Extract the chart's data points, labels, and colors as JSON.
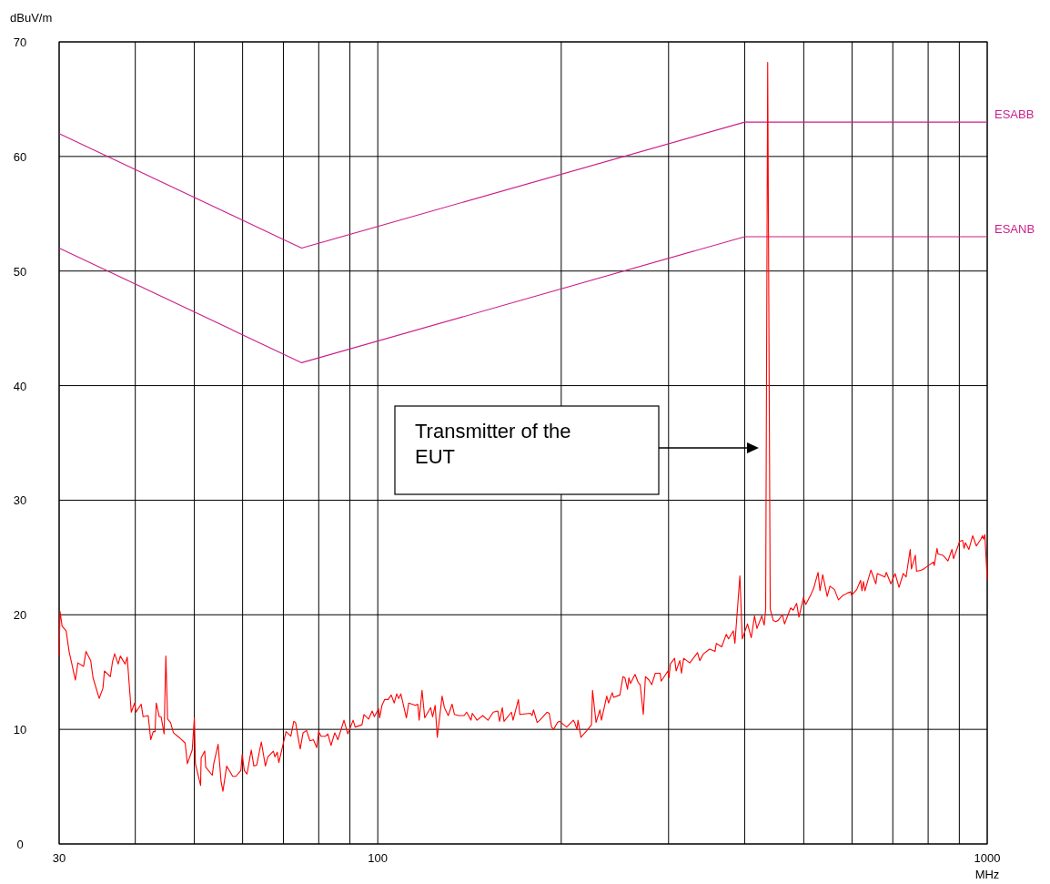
{
  "chart_data": {
    "type": "line",
    "xlabel": "MHz",
    "ylabel": "dBuV/m",
    "log": "x",
    "grid": true,
    "xlim": [
      30,
      1000
    ],
    "ylim": [
      0,
      70
    ],
    "xticks": [
      30,
      {
        "value": 40,
        "label": null
      },
      {
        "value": 50,
        "label": null
      },
      {
        "value": 60,
        "label": null
      },
      {
        "value": 70,
        "label": null
      },
      {
        "value": 80,
        "label": null
      },
      {
        "value": 90,
        "label": null
      },
      100,
      {
        "value": 200,
        "label": null
      },
      {
        "value": 300,
        "label": null
      },
      {
        "value": 400,
        "label": null
      },
      {
        "value": 500,
        "label": null
      },
      {
        "value": 600,
        "label": null
      },
      {
        "value": 700,
        "label": null
      },
      {
        "value": 800,
        "label": null
      },
      {
        "value": 900,
        "label": null
      },
      1000
    ],
    "yticks": [
      0,
      10,
      20,
      30,
      40,
      50,
      60,
      70
    ],
    "annotations": [
      "Transmitter of the EUT"
    ],
    "series": [
      {
        "name": "ESABB",
        "color": "#cc1f8a",
        "line_style": "solid",
        "x": [
          30,
          75,
          400,
          1000
        ],
        "values": [
          62,
          52,
          63,
          63
        ]
      },
      {
        "name": "ESANB",
        "color": "#cc1f8a",
        "line_style": "solid",
        "x": [
          30,
          75,
          400,
          1000
        ],
        "values": [
          52,
          42,
          53,
          53
        ]
      },
      {
        "color": "#ff0000",
        "line_style": "solid",
        "x": [
          30,
          30.1,
          30.34,
          30.8,
          31.15,
          31.9,
          32.2,
          32.9,
          33.2,
          33.8,
          34.1,
          34.9,
          35.4,
          35.6,
          36.4,
          36.7,
          37.0,
          37.5,
          37.8,
          38.5,
          38.8,
          39.4,
          39.9,
          40.1,
          40.9,
          41.2,
          42.0,
          42.4,
          42.8,
          43.1,
          43.3,
          43.8,
          44.1,
          44.6,
          44.9,
          45.2,
          45.7,
          46.2,
          47.2,
          48.3,
          48.7,
          49.6,
          50.0,
          50.2,
          51.2,
          51.3,
          52.0,
          52.2,
          53.5,
          53.8,
          54.7,
          55.3,
          55.7,
          56.5,
          57.8,
          58.5,
          59.6,
          59.9,
          60.4,
          61.0,
          62.0,
          62.6,
          63.3,
          64.4,
          65.4,
          66.0,
          67.4,
          67.8,
          68.4,
          68.8,
          70.7,
          72.0,
          72.8,
          73.3,
          74.0,
          74.6,
          75.4,
          76.4,
          77.4,
          78.4,
          79.4,
          80.0,
          80.7,
          82.1,
          82.8,
          83.8,
          85.0,
          86.0,
          88.0,
          89.3,
          91.1,
          91.8,
          94.2,
          94.9,
          96.6,
          97.9,
          98.7,
          100.3,
          100.7,
          101.6,
          102.6,
          104.0,
          105.2,
          106.4,
          107.4,
          108.2,
          109.1,
          111.4,
          112.4,
          115.3,
          116.3,
          116.9,
          118.2,
          119.4,
          122.1,
          123.0,
          124.2,
          125.2,
          127.5,
          128.6,
          130.5,
          132.4,
          133.6,
          135.8,
          138.6,
          139.9,
          142.2,
          142.9,
          145.5,
          148.6,
          151.7,
          154.7,
          157.4,
          158.4,
          160.1,
          161.1,
          165.7,
          166.7,
          170.1,
          171.0,
          178.0,
          179.1,
          180.1,
          182.6,
          184.4,
          189.5,
          191.1,
          192.8,
          194.3,
          197.2,
          198.8,
          204.1,
          209.3,
          210.4,
          212.2,
          213.1,
          215.4,
          220.4,
          224.2,
          225.1,
          228.1,
          231.5,
          232.8,
          237.5,
          239.1,
          242.5,
          243.7,
          249.6,
          252.5,
          254.4,
          256.9,
          258.2,
          259.8,
          264.3,
          267.4,
          269.5,
          272.7,
          274.9,
          278.7,
          281.5,
          285.3,
          290.6,
          291.7,
          299.3,
          300.5,
          302,
          306.9,
          308.7,
          313.0,
          315,
          317.6,
          325.1,
          334.7,
          337.5,
          342.4,
          350.3,
          357.6,
          359.3,
          366.7,
          373.1,
          376.3,
          383.1,
          385.5,
          392.8,
          396.3,
          404.3,
          410.0,
          415.1,
          419,
          426.7,
          430.6,
          433.0,
          436.3,
          440.5,
          445.6,
          450.0,
          453.6,
          461.3,
          465.0,
          475.8,
          480.5,
          486.7,
          491,
          499.3,
          503.8,
          514,
          519,
          527.8,
          531.6,
          537.1,
          546.3,
          552,
          561.6,
          570,
          580,
          590,
          596.8,
          599,
          610.7,
          619.8,
          623,
          626.5,
          630,
          644.4,
          656.5,
          660,
          679.3,
          683,
          694.9,
          706,
          716.7,
          728,
          736,
          747.5,
          751,
          762.2,
          765.7,
          779.3,
          786.6,
          816,
          818.5,
          827.3,
          830.6,
          844.7,
          849.2,
          862.1,
          875.3,
          880.6,
          901,
          911.2,
          916.4,
          920.8,
          933,
          946.6,
          959.8,
          976.5,
          982,
          986.5,
          991,
          1000
        ],
        "values": [
          16.4,
          20.3,
          19.0,
          18.6,
          16.8,
          14.3,
          15.8,
          15.5,
          16.8,
          16.0,
          14.5,
          12.7,
          13.6,
          15.1,
          14.6,
          15.9,
          16.6,
          15.7,
          16.4,
          15.7,
          16.3,
          11.5,
          12.3,
          11.5,
          12.2,
          11.1,
          11.2,
          9.1,
          9.8,
          9.8,
          12.3,
          11.1,
          11.1,
          9.6,
          16.4,
          10.9,
          10.6,
          9.7,
          9.3,
          8.8,
          7.0,
          8.2,
          11.0,
          7.0,
          5.1,
          7.5,
          8.1,
          6.7,
          6.0,
          7.0,
          8.7,
          5.5,
          4.6,
          6.8,
          5.9,
          5.9,
          6.4,
          7.8,
          6.4,
          6.1,
          8.2,
          6.8,
          6.9,
          8.9,
          6.8,
          7.6,
          8.1,
          7.6,
          8.0,
          7.1,
          9.8,
          9.4,
          10.7,
          10.6,
          9.3,
          8.3,
          9.7,
          9.9,
          9.0,
          9.1,
          8.4,
          9.8,
          9.4,
          9.4,
          9.6,
          8.6,
          9.7,
          9.1,
          10.8,
          9.6,
          10.8,
          10.2,
          10.4,
          11.3,
          10.9,
          11.6,
          11.1,
          11.8,
          11.0,
          12.1,
          12.6,
          12.6,
          13.0,
          12.3,
          13.1,
          12.7,
          13.1,
          11.0,
          12.3,
          12.1,
          12.2,
          10.8,
          13.4,
          11.0,
          11.9,
          11.1,
          12.1,
          9.3,
          12.9,
          11.9,
          11.2,
          12.2,
          11.3,
          11.2,
          11.2,
          11.5,
          10.8,
          11.4,
          10.8,
          11.2,
          10.8,
          11.5,
          11.6,
          10.7,
          11.9,
          10.7,
          11.5,
          10.8,
          12.6,
          11.3,
          11.4,
          11.2,
          11.7,
          10.6,
          10.8,
          11.5,
          11.4,
          10.2,
          10.0,
          10.6,
          10.7,
          10.2,
          10.8,
          10.6,
          10.0,
          10.8,
          9.3,
          9.9,
          10.4,
          13.4,
          10.6,
          11.7,
          10.8,
          12.9,
          12.3,
          13.2,
          12.8,
          13.0,
          14.6,
          14.5,
          13.5,
          14.5,
          14.0,
          14.8,
          14.1,
          13.9,
          11.3,
          14.6,
          14.3,
          13.9,
          14.9,
          14.9,
          14.2,
          15.1,
          14.5,
          15.7,
          16.2,
          15.1,
          16.0,
          14.9,
          16.2,
          15.8,
          16.7,
          16.0,
          16.6,
          17.0,
          16.8,
          17.5,
          17.2,
          18.3,
          17.9,
          18.6,
          17.5,
          23.4,
          17.9,
          19.2,
          18.0,
          19.9,
          18.8,
          19.9,
          19.1,
          20.5,
          68.2,
          20.5,
          19.5,
          19.4,
          19.5,
          20.0,
          19.2,
          20.6,
          20.4,
          21.0,
          19.8,
          21.5,
          20.9,
          21.8,
          22.3,
          23.7,
          22.1,
          23.5,
          21.6,
          22.5,
          22.2,
          21.3,
          21.7,
          21.9,
          22.0,
          21.7,
          22.2,
          23.0,
          22.1,
          22.9,
          22.1,
          23.9,
          22.7,
          23.6,
          23.3,
          23.7,
          22.7,
          23.6,
          22.4,
          23.6,
          23.3,
          25.7,
          24.0,
          25.2,
          23.8,
          23.9,
          24.0,
          24.6,
          24.3,
          25.8,
          25.3,
          25.2,
          25.1,
          24.7,
          25.7,
          24.9,
          26.4,
          26.5,
          25.8,
          26.3,
          25.7,
          26.9,
          26.0,
          26.6,
          26.9,
          26.6,
          27.0,
          23.1
        ]
      }
    ]
  }
}
